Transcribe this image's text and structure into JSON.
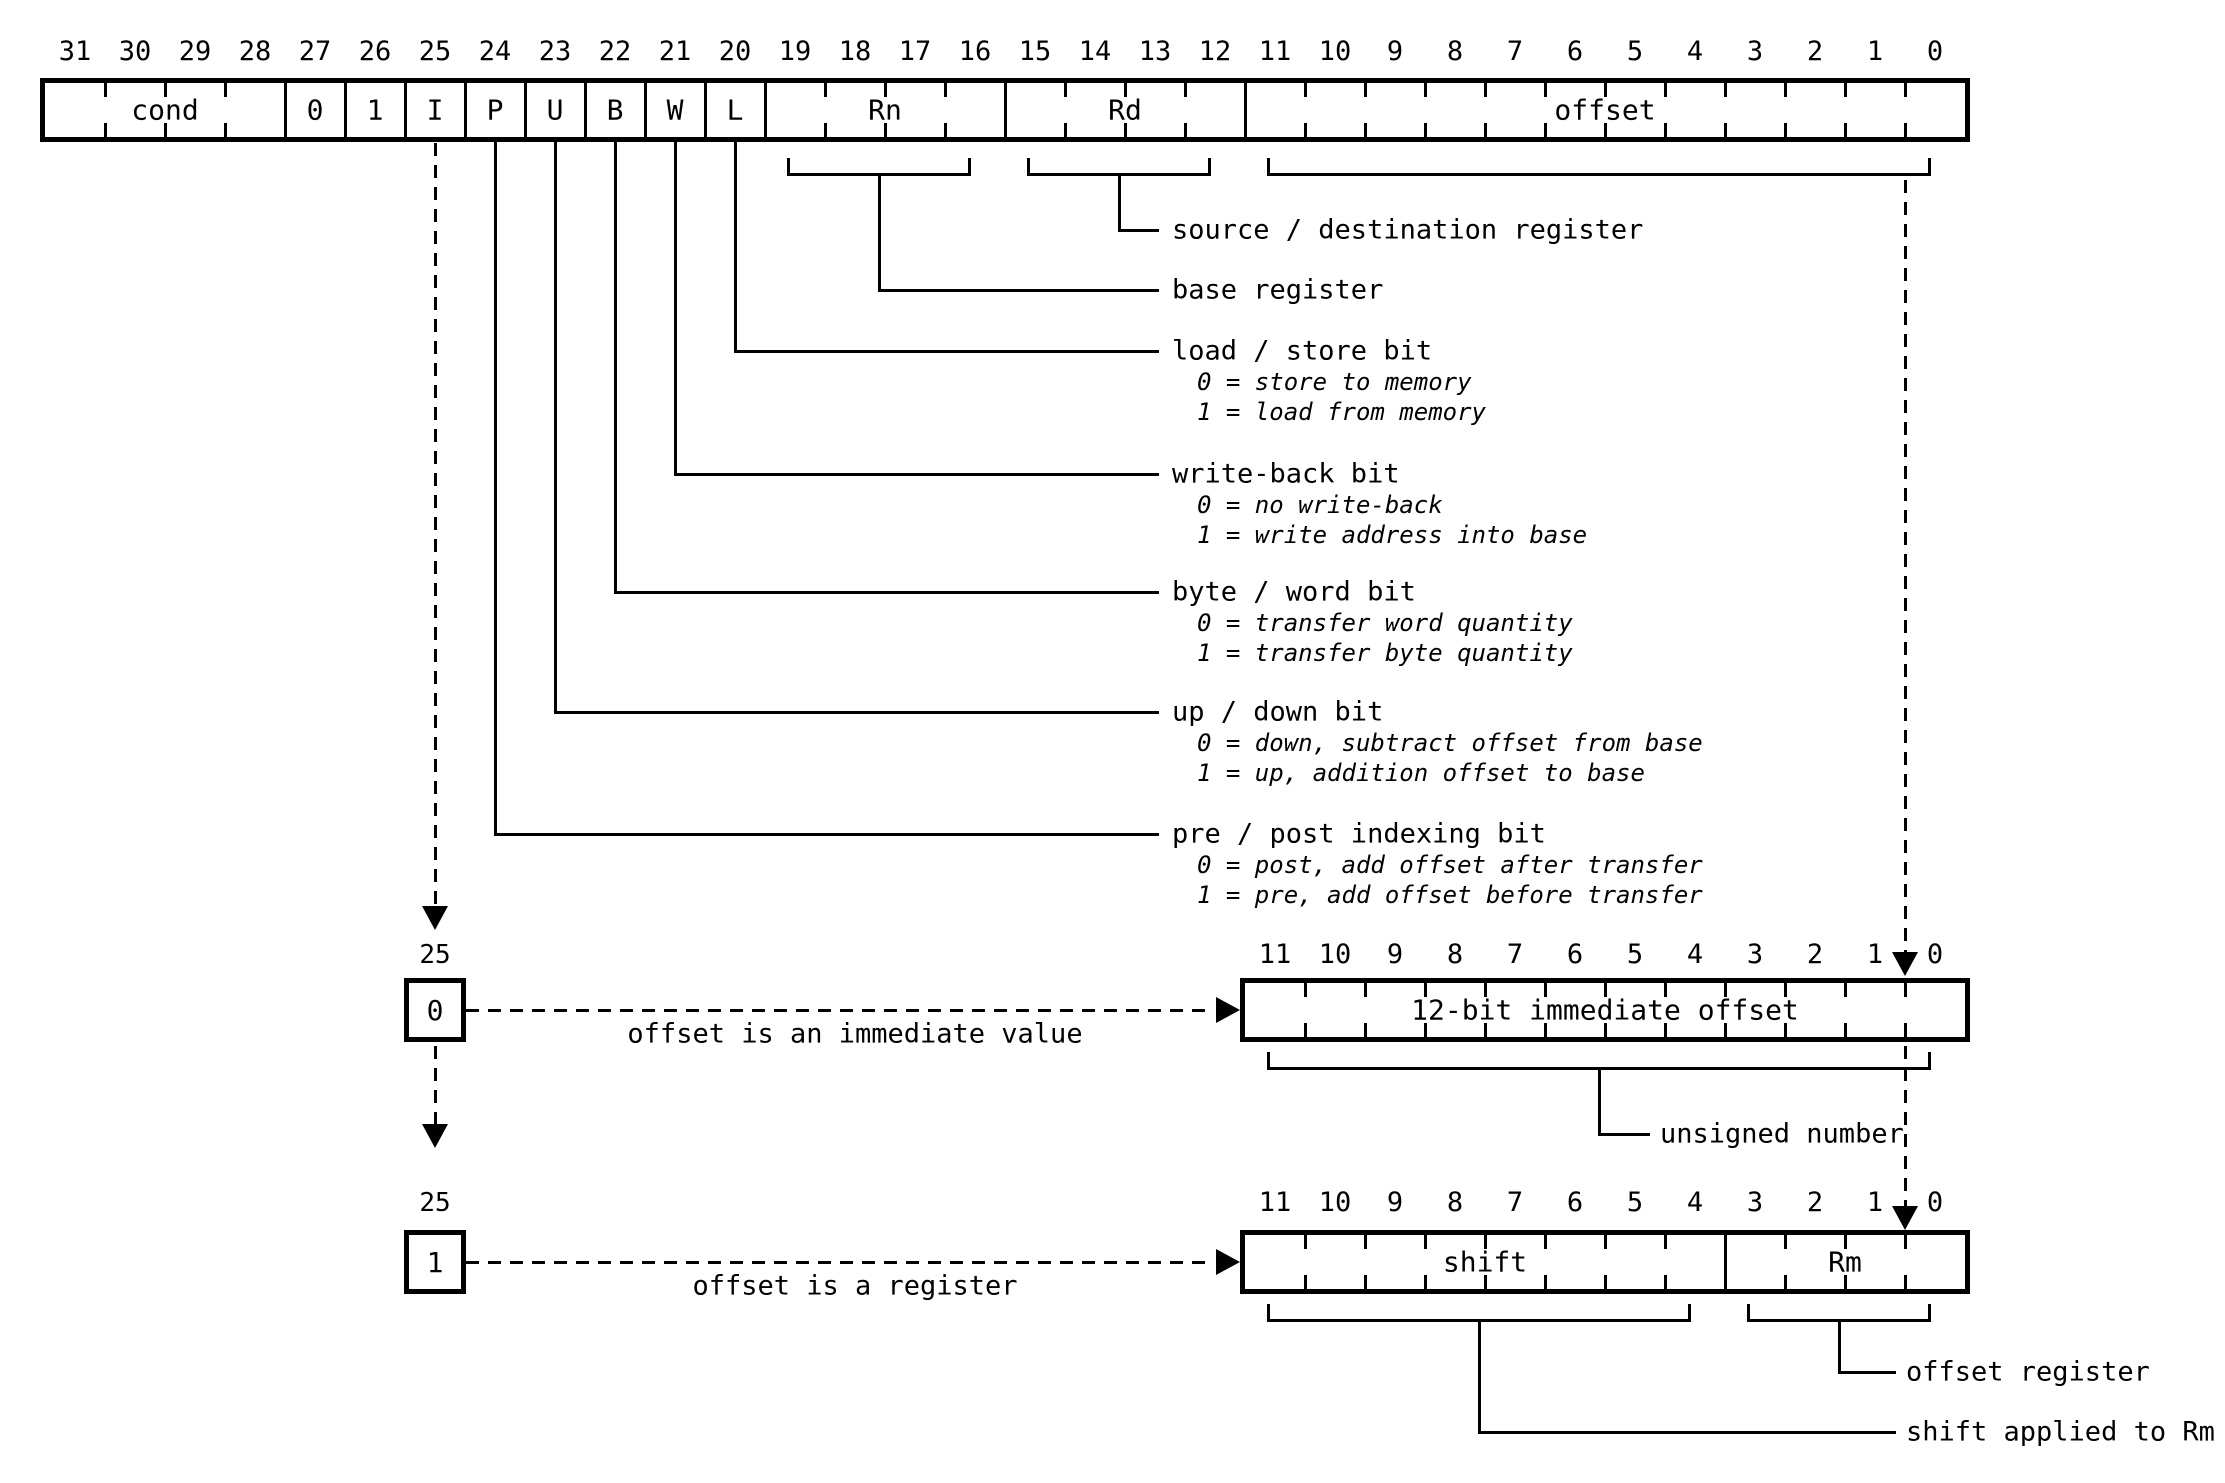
{
  "colors": {
    "ink": "#000000",
    "paper": "#ffffff"
  },
  "register": {
    "bit_numbers": [
      "31",
      "30",
      "29",
      "28",
      "27",
      "26",
      "25",
      "24",
      "23",
      "22",
      "21",
      "20",
      "19",
      "18",
      "17",
      "16",
      "15",
      "14",
      "13",
      "12",
      "11",
      "10",
      "9",
      "8",
      "7",
      "6",
      "5",
      "4",
      "3",
      "2",
      "1",
      "0"
    ],
    "fields": [
      {
        "label": "cond",
        "bits": 4
      },
      {
        "label": "0",
        "bits": 1
      },
      {
        "label": "1",
        "bits": 1
      },
      {
        "label": "I",
        "bits": 1
      },
      {
        "label": "P",
        "bits": 1
      },
      {
        "label": "U",
        "bits": 1
      },
      {
        "label": "B",
        "bits": 1
      },
      {
        "label": "W",
        "bits": 1
      },
      {
        "label": "L",
        "bits": 1
      },
      {
        "label": "Rn",
        "bits": 4
      },
      {
        "label": "Rd",
        "bits": 4
      },
      {
        "label": "offset",
        "bits": 12
      }
    ]
  },
  "annotations": [
    {
      "title": "source / destination register",
      "details": []
    },
    {
      "title": "base register",
      "details": []
    },
    {
      "title": "load / store bit",
      "details": [
        "0 = store to memory",
        "1 = load from memory"
      ]
    },
    {
      "title": "write-back bit",
      "details": [
        "0 = no write-back",
        "1 = write address into base"
      ]
    },
    {
      "title": "byte / word bit",
      "details": [
        "0 = transfer word quantity",
        "1 = transfer byte quantity"
      ]
    },
    {
      "title": "up / down bit",
      "details": [
        "0 = down, subtract offset from base",
        "1 = up, addition offset to base"
      ]
    },
    {
      "title": "pre / post indexing bit",
      "details": [
        "0 = post, add offset after transfer",
        "1 = pre, add offset before transfer"
      ]
    }
  ],
  "immediate_variant": {
    "bit_label": "25",
    "selector_value": "0",
    "arrow_caption": "offset is an immediate value",
    "bit_numbers": [
      "11",
      "10",
      "9",
      "8",
      "7",
      "6",
      "5",
      "4",
      "3",
      "2",
      "1",
      "0"
    ],
    "fields": [
      {
        "label": "12-bit immediate offset",
        "bits": 12
      }
    ],
    "bracket_caption": "unsigned number"
  },
  "register_variant": {
    "bit_label": "25",
    "selector_value": "1",
    "arrow_caption": "offset is a register",
    "bit_numbers": [
      "11",
      "10",
      "9",
      "8",
      "7",
      "6",
      "5",
      "4",
      "3",
      "2",
      "1",
      "0"
    ],
    "fields": [
      {
        "label": "shift",
        "bits": 8
      },
      {
        "label": "Rm",
        "bits": 4
      }
    ],
    "captions": {
      "rm": "offset register",
      "shift": "shift applied to Rm"
    }
  }
}
